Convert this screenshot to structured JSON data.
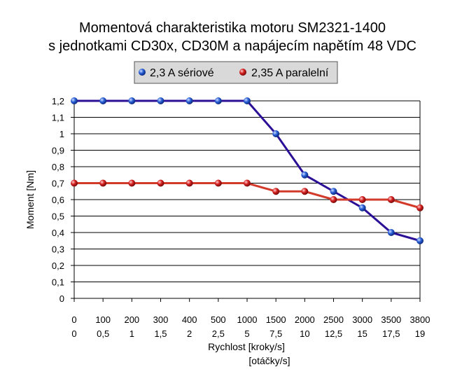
{
  "chart_data": {
    "type": "line",
    "title": [
      "Momentová charakteristika motoru SM2321-1400",
      "s jednotkami CD30x, CD30M a napájecím napětím 48 VDC"
    ],
    "ylabel": "Moment [Nm]",
    "xlabel": [
      "Rychlost [kroky/s]",
      "[otáčky/s]"
    ],
    "ylim": [
      0,
      1.2
    ],
    "ystep": 0.1,
    "yticks": [
      "0",
      "0,1",
      "0,2",
      "0,3",
      "0,4",
      "0,5",
      "0,6",
      "0,7",
      "0,8",
      "0,9",
      "1",
      "1,1",
      "1,2"
    ],
    "categories": [
      "0",
      "100",
      "200",
      "300",
      "400",
      "500",
      "1000",
      "1500",
      "2000",
      "2500",
      "3000",
      "3500",
      "3800"
    ],
    "categories2": [
      "0",
      "0,5",
      "1",
      "1,5",
      "2",
      "2,5",
      "5",
      "7,5",
      "10",
      "12,5",
      "15",
      "17,5",
      "19"
    ],
    "grid": true,
    "legend_position": "top",
    "series": [
      {
        "name": "2,3 A sériové",
        "color": "#2b0f96",
        "marker": "#2a5fd6",
        "values": [
          1.2,
          1.2,
          1.2,
          1.2,
          1.2,
          1.2,
          1.2,
          1.0,
          0.75,
          0.65,
          0.55,
          0.4,
          0.35
        ]
      },
      {
        "name": "2,35 A paralelní",
        "color": "#d23a2a",
        "marker": "#d42020",
        "values": [
          0.7,
          0.7,
          0.7,
          0.7,
          0.7,
          0.7,
          0.7,
          0.65,
          0.65,
          0.6,
          0.6,
          0.6,
          0.55
        ]
      }
    ]
  }
}
